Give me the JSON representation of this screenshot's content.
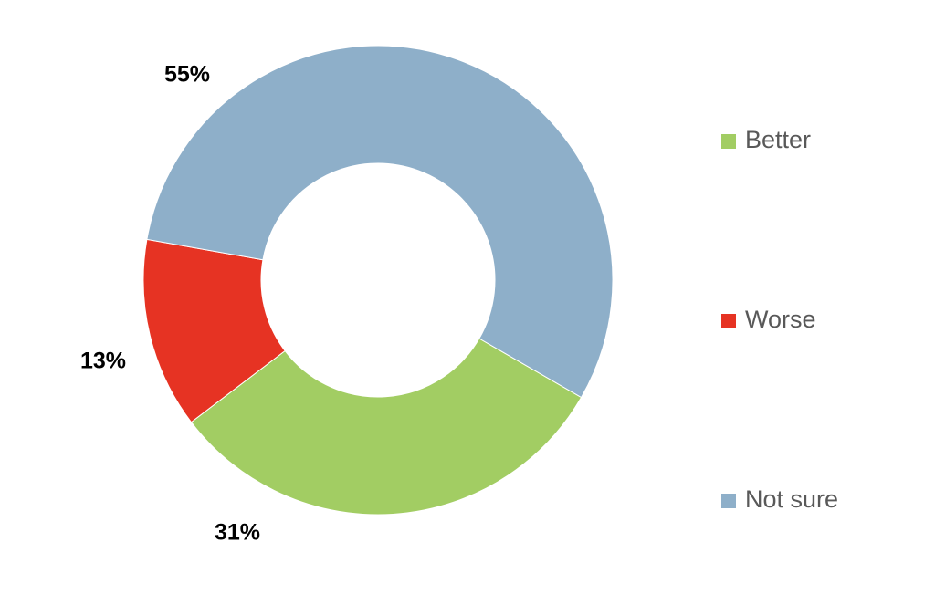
{
  "chart_data": {
    "type": "donut",
    "categories": [
      "Better",
      "Worse",
      "Not sure"
    ],
    "values": [
      31,
      13,
      55
    ],
    "value_labels": [
      "31%",
      "13%",
      "55%"
    ],
    "colors": [
      "#a2cd63",
      "#e63323",
      "#8eafc9"
    ]
  }
}
